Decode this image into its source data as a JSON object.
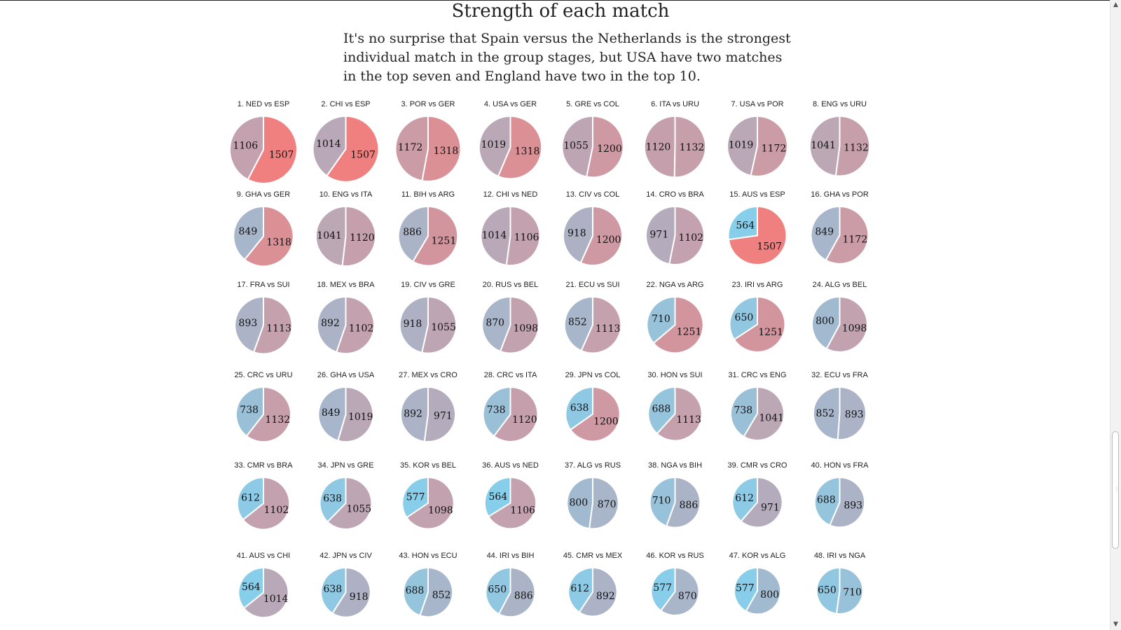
{
  "page": {
    "title": "Strength of each match",
    "intro_lines": [
      "It's no surprise that Spain versus the Netherlands is the strongest",
      "individual match in the group stages, but USA have two matches",
      "in the top seven and England have two in the top 10."
    ]
  },
  "scrollbar": {
    "up_icon": "up-arrow-icon",
    "down_icon": "down-arrow-icon",
    "up_glyph": "▲",
    "down_glyph": "▼",
    "grip_glyph": "⋮"
  },
  "chart_data": {
    "type": "pie",
    "title": "Strength of each match",
    "grid_columns": 8,
    "color_scale": {
      "low": "#87ceeb",
      "high": "#f08080",
      "min": 564,
      "max": 1507
    },
    "matches": [
      {
        "label": "1. NED vs ESP",
        "values": [
          1106,
          1507
        ]
      },
      {
        "label": "2. CHI vs ESP",
        "values": [
          1014,
          1507
        ]
      },
      {
        "label": "3. POR vs GER",
        "values": [
          1172,
          1318
        ]
      },
      {
        "label": "4. USA vs GER",
        "values": [
          1019,
          1318
        ]
      },
      {
        "label": "5. GRE vs COL",
        "values": [
          1055,
          1200
        ]
      },
      {
        "label": "6. ITA vs URU",
        "values": [
          1120,
          1132
        ]
      },
      {
        "label": "7. USA vs POR",
        "values": [
          1019,
          1172
        ]
      },
      {
        "label": "8. ENG vs URU",
        "values": [
          1041,
          1132
        ]
      },
      {
        "label": "9. GHA vs GER",
        "values": [
          849,
          1318
        ]
      },
      {
        "label": "10. ENG vs ITA",
        "values": [
          1041,
          1120
        ]
      },
      {
        "label": "11. BIH vs ARG",
        "values": [
          886,
          1251
        ]
      },
      {
        "label": "12. CHI vs NED",
        "values": [
          1014,
          1106
        ]
      },
      {
        "label": "13. CIV vs COL",
        "values": [
          918,
          1200
        ]
      },
      {
        "label": "14. CRO vs BRA",
        "values": [
          971,
          1102
        ]
      },
      {
        "label": "15. AUS vs ESP",
        "values": [
          564,
          1507
        ]
      },
      {
        "label": "16. GHA vs POR",
        "values": [
          849,
          1172
        ]
      },
      {
        "label": "17. FRA vs SUI",
        "values": [
          893,
          1113
        ]
      },
      {
        "label": "18. MEX vs BRA",
        "values": [
          892,
          1102
        ]
      },
      {
        "label": "19. CIV vs GRE",
        "values": [
          918,
          1055
        ]
      },
      {
        "label": "20. RUS vs BEL",
        "values": [
          870,
          1098
        ]
      },
      {
        "label": "21. ECU vs SUI",
        "values": [
          852,
          1113
        ]
      },
      {
        "label": "22. NGA vs ARG",
        "values": [
          710,
          1251
        ]
      },
      {
        "label": "23. IRI vs ARG",
        "values": [
          650,
          1251
        ]
      },
      {
        "label": "24. ALG vs BEL",
        "values": [
          800,
          1098
        ]
      },
      {
        "label": "25. CRC vs URU",
        "values": [
          738,
          1132
        ]
      },
      {
        "label": "26. GHA vs USA",
        "values": [
          849,
          1019
        ]
      },
      {
        "label": "27. MEX vs CRO",
        "values": [
          892,
          971
        ]
      },
      {
        "label": "28. CRC vs ITA",
        "values": [
          738,
          1120
        ]
      },
      {
        "label": "29. JPN vs COL",
        "values": [
          638,
          1200
        ]
      },
      {
        "label": "30. HON vs SUI",
        "values": [
          688,
          1113
        ]
      },
      {
        "label": "31. CRC vs ENG",
        "values": [
          738,
          1041
        ]
      },
      {
        "label": "32. ECU vs FRA",
        "values": [
          852,
          893
        ]
      },
      {
        "label": "33. CMR vs BRA",
        "values": [
          612,
          1102
        ]
      },
      {
        "label": "34. JPN vs GRE",
        "values": [
          638,
          1055
        ]
      },
      {
        "label": "35. KOR vs BEL",
        "values": [
          577,
          1098
        ]
      },
      {
        "label": "36. AUS vs NED",
        "values": [
          564,
          1106
        ]
      },
      {
        "label": "37. ALG vs RUS",
        "values": [
          800,
          870
        ]
      },
      {
        "label": "38. NGA vs BIH",
        "values": [
          710,
          886
        ]
      },
      {
        "label": "39. CMR vs CRO",
        "values": [
          612,
          971
        ]
      },
      {
        "label": "40. HON vs FRA",
        "values": [
          688,
          893
        ]
      },
      {
        "label": "41. AUS vs CHI",
        "values": [
          564,
          1014
        ]
      },
      {
        "label": "42. JPN vs CIV",
        "values": [
          638,
          918
        ]
      },
      {
        "label": "43. HON vs ECU",
        "values": [
          688,
          852
        ]
      },
      {
        "label": "44. IRI vs BIH",
        "values": [
          650,
          886
        ]
      },
      {
        "label": "45. CMR vs MEX",
        "values": [
          612,
          892
        ]
      },
      {
        "label": "46. KOR vs RUS",
        "values": [
          577,
          870
        ]
      },
      {
        "label": "47. KOR vs ALG",
        "values": [
          577,
          800
        ]
      },
      {
        "label": "48. IRI vs NGA",
        "values": [
          650,
          710
        ]
      }
    ]
  }
}
